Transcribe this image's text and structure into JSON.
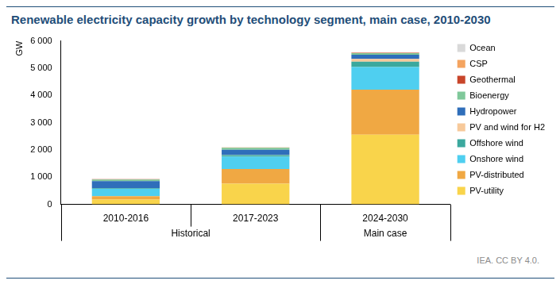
{
  "chart_data": {
    "type": "bar",
    "title": "Renewable electricity capacity growth by technology segment, main case, 2010-2030",
    "y_label": "GW",
    "source": "IEA. CC BY 4.0.",
    "categories": [
      "2010-2016",
      "2017-2023",
      "2024-2030"
    ],
    "groups": [
      "Historical",
      "Historical",
      "Main case"
    ],
    "stacked": true,
    "grid": false,
    "legend": "right",
    "ylim": [
      0,
      6000
    ],
    "yticks": [
      0,
      {
        "value": 1000,
        "label": "1 000"
      },
      {
        "value": 2000,
        "label": "2 000"
      },
      {
        "value": 3000,
        "label": "3 000"
      },
      {
        "value": 4000,
        "label": "4 000"
      },
      {
        "value": 5000,
        "label": "5 000"
      },
      {
        "value": 6000,
        "label": "6 000"
      }
    ],
    "series": [
      {
        "name": "PV-utility",
        "color": "#f9d44b",
        "values": [
          180,
          760,
          2560
        ]
      },
      {
        "name": "PV-distributed",
        "color": "#f0a843",
        "values": [
          120,
          540,
          1650
        ]
      },
      {
        "name": "Onshore wind",
        "color": "#4fcff0",
        "values": [
          270,
          450,
          830
        ]
      },
      {
        "name": "Offshore wind",
        "color": "#3ba89e",
        "values": [
          25,
          60,
          200
        ]
      },
      {
        "name": "PV and wind for H2",
        "color": "#f7c99a",
        "values": [
          0,
          5,
          100
        ]
      },
      {
        "name": "Hydropower",
        "color": "#2f6eba",
        "values": [
          260,
          190,
          150
        ]
      },
      {
        "name": "Bioenergy",
        "color": "#7fc89a",
        "values": [
          60,
          70,
          60
        ]
      },
      {
        "name": "Geothermal",
        "color": "#c8452a",
        "values": [
          10,
          10,
          15
        ]
      },
      {
        "name": "CSP",
        "color": "#f4a460",
        "values": [
          5,
          5,
          10
        ]
      },
      {
        "name": "Ocean",
        "color": "#d9d9d9",
        "values": [
          0,
          0,
          1
        ]
      }
    ]
  }
}
